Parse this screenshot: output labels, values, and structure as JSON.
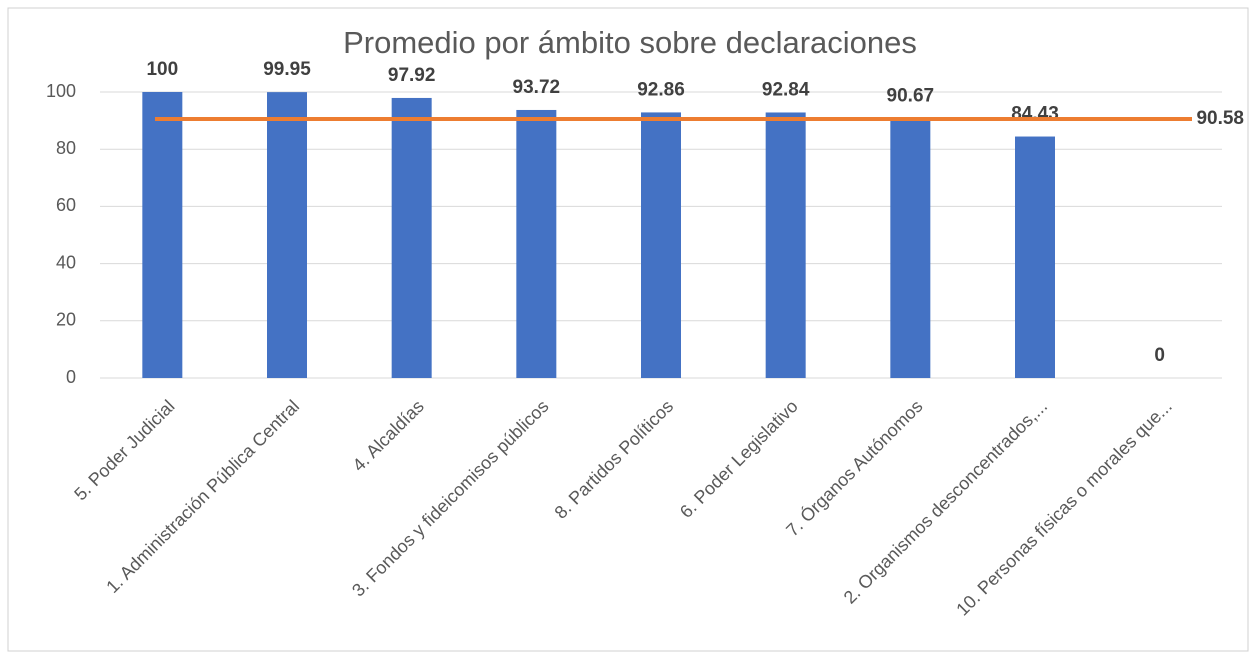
{
  "chart_data": {
    "type": "bar",
    "title": "Promedio por ámbito sobre declaraciones",
    "categories": [
      "5. Poder Judicial",
      "1. Administración Pública Central",
      "4. Alcaldías",
      "3. Fondos y fideicomisos públicos",
      "8. Partidos Políticos",
      "6. Poder Legislativo",
      "7. Órganos Autónomos",
      "2. Organismos desconcentrados,...",
      "10. Personas físicas o morales que..."
    ],
    "values": [
      100,
      99.95,
      97.92,
      93.72,
      92.86,
      92.84,
      90.67,
      84.43,
      0
    ],
    "color": "#4472c4",
    "reference_line": {
      "value": 90.58,
      "color": "#ed7d31"
    },
    "ylim": [
      0,
      100
    ],
    "yticks": [
      0,
      20,
      40,
      60,
      80,
      100
    ],
    "grid": true
  }
}
